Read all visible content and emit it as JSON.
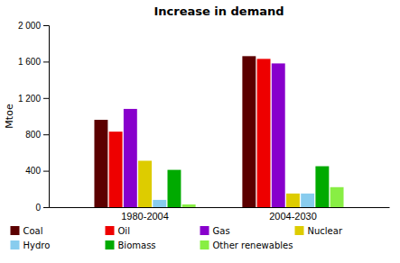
{
  "chart_data": {
    "type": "bar",
    "title": "Increase in demand",
    "ylabel": "Mtoe",
    "categories": [
      "1980-2004",
      "2004-2030"
    ],
    "series": [
      {
        "name": "Coal",
        "color": "#5c0000",
        "values": [
          960,
          1660
        ]
      },
      {
        "name": "Oil",
        "color": "#ee0000",
        "values": [
          830,
          1630
        ]
      },
      {
        "name": "Gas",
        "color": "#8800cc",
        "values": [
          1080,
          1580
        ]
      },
      {
        "name": "Nuclear",
        "color": "#ddcc00",
        "values": [
          510,
          150
        ]
      },
      {
        "name": "Hydro",
        "color": "#88ccee",
        "values": [
          80,
          150
        ]
      },
      {
        "name": "Biomass",
        "color": "#00aa00",
        "values": [
          410,
          450
        ]
      },
      {
        "name": "Other renewables",
        "color": "#88ee44",
        "values": [
          30,
          220
        ]
      }
    ],
    "ylim": [
      0,
      2000
    ],
    "yticks": [
      0,
      400,
      800,
      {
        "value": 1200,
        "label": "1 200"
      },
      {
        "value": 1600,
        "label": "1 600"
      },
      {
        "value": 2000,
        "label": "2 000"
      }
    ],
    "grid": false,
    "legend": "bottom"
  }
}
